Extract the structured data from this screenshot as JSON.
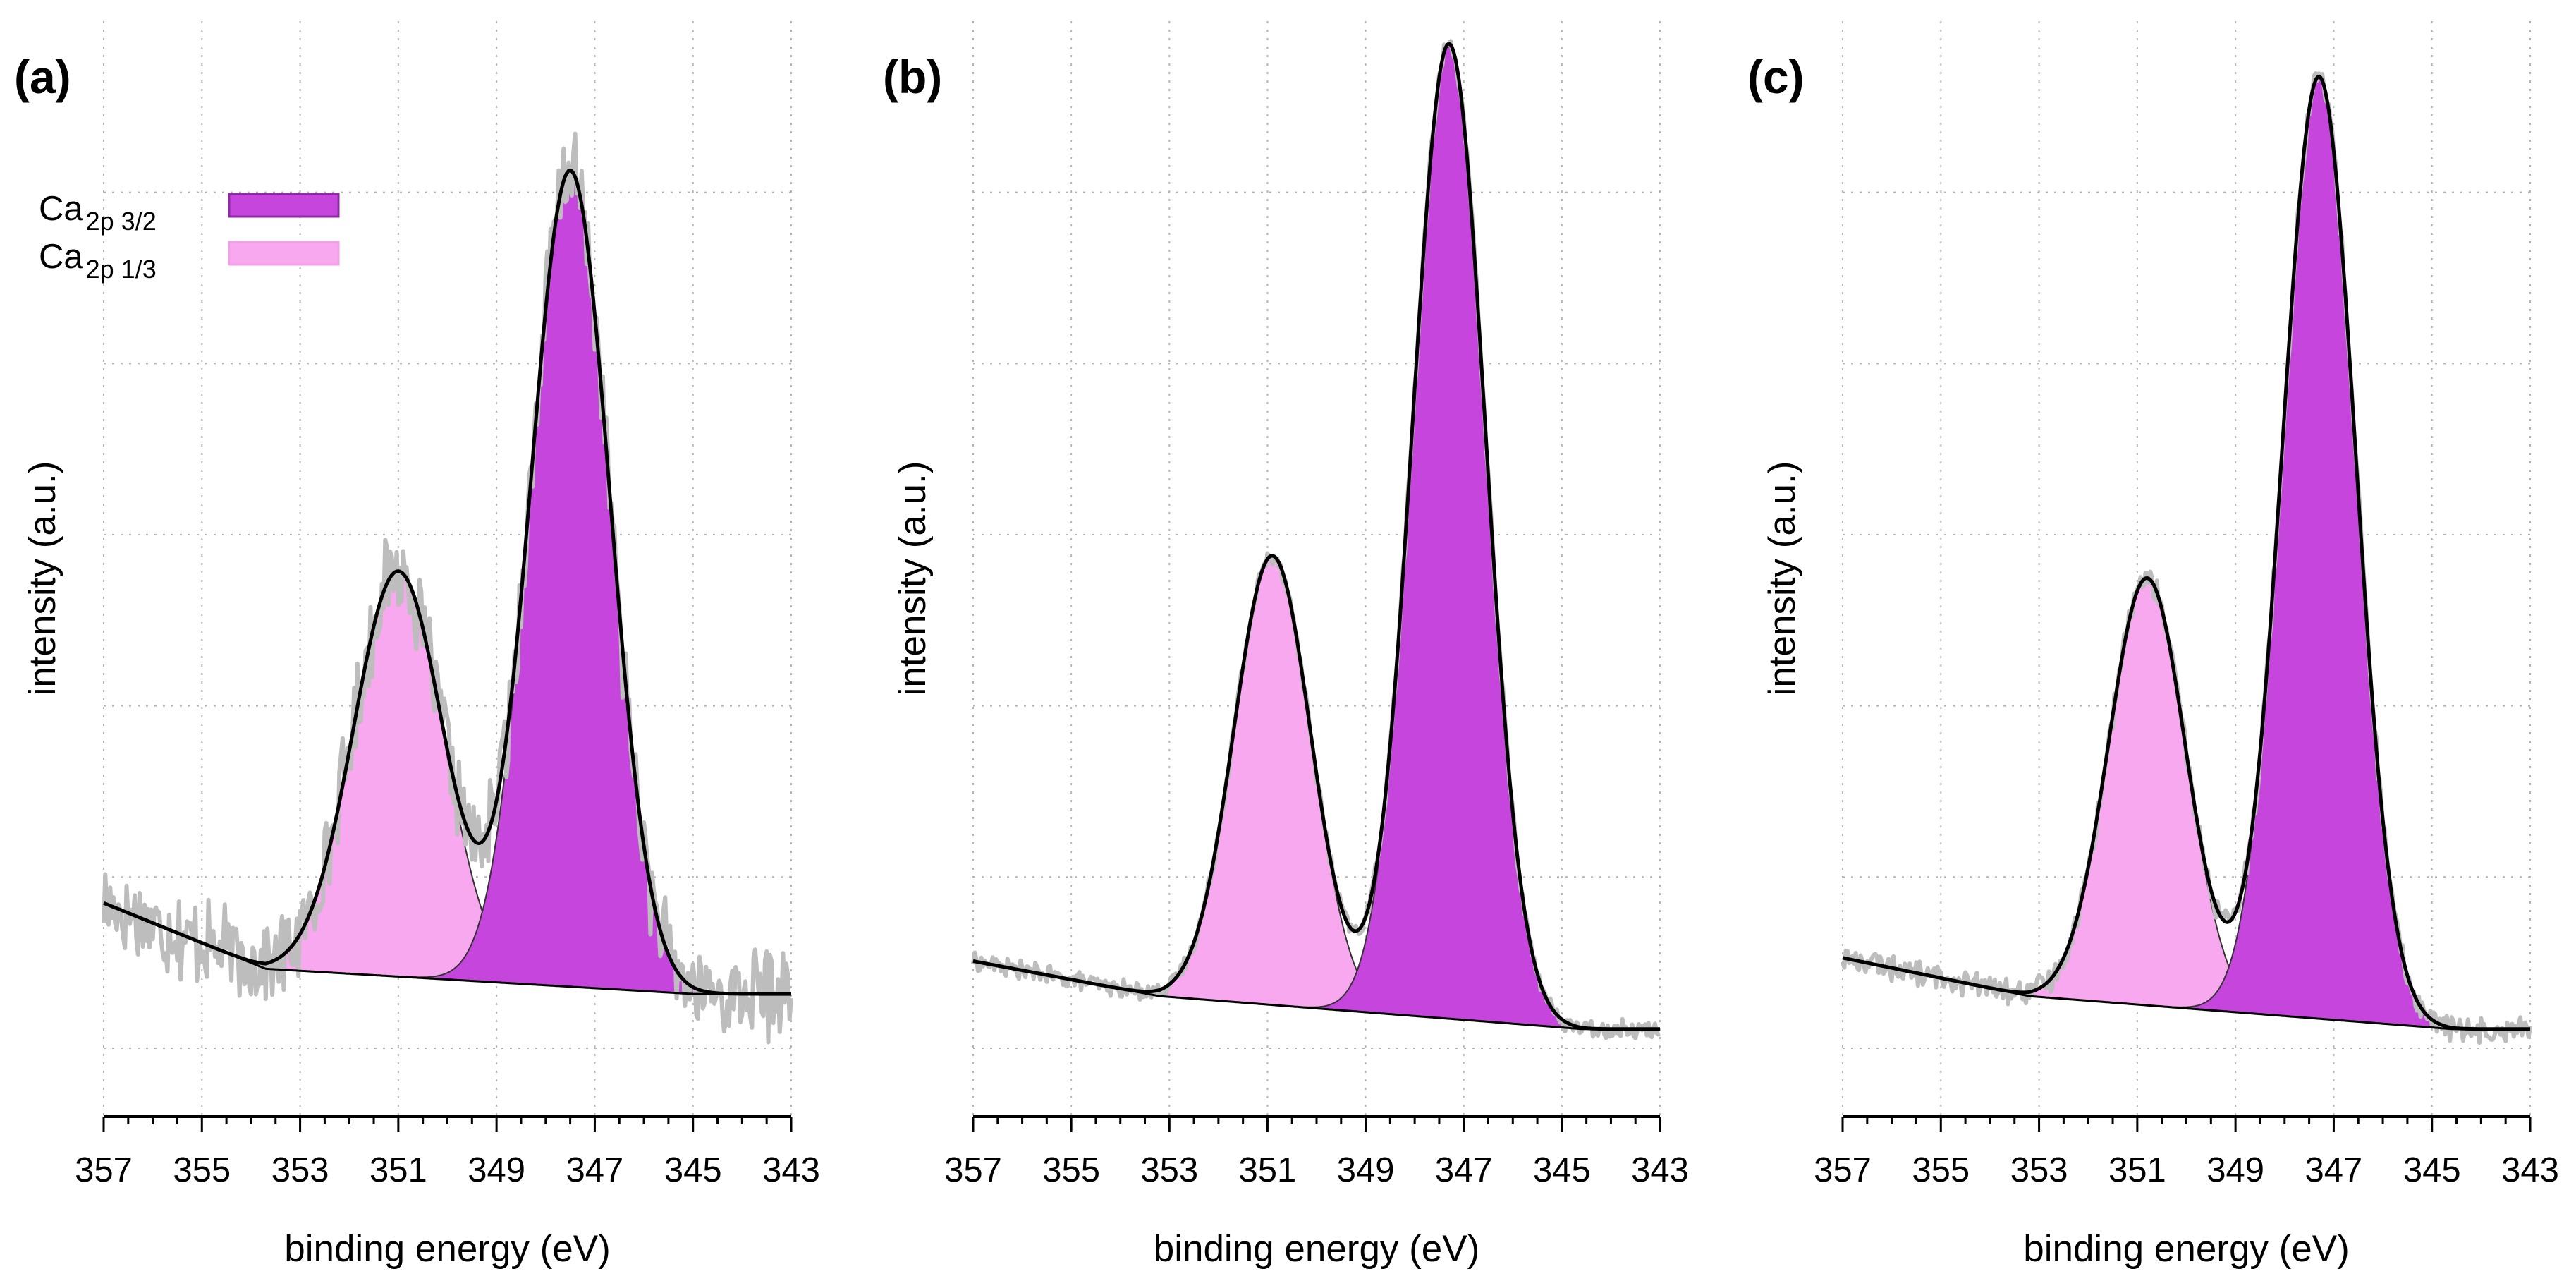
{
  "colors": {
    "ca_2p32": "#c646dd",
    "ca_2p13": "#f8a8ee",
    "raw": "#bdbdbd",
    "fit": "#000000"
  },
  "legend": {
    "items": [
      {
        "base": "Ca",
        "sub": "2p 3/2",
        "color": "#c646dd"
      },
      {
        "base": "Ca",
        "sub": "2p 1/3",
        "color": "#f8a8ee"
      }
    ]
  },
  "chart_data": [
    {
      "type": "line",
      "panel_label": "(a)",
      "xlabel": "binding energy (eV)",
      "ylabel": "intensity (a.u.)",
      "xlim": [
        357,
        343
      ],
      "ylim": [
        0,
        100
      ],
      "xticks": [
        "357",
        "355",
        "353",
        "351",
        "349",
        "347",
        "345",
        "343"
      ],
      "baseline": {
        "x": [
          357,
          353.7,
          345,
          343
        ],
        "y": [
          19.5,
          13.5,
          11.2,
          11.2
        ]
      },
      "peaks": [
        {
          "name": "Ca 2p 3/2",
          "center": 347.5,
          "height": 74.5,
          "fwhm": 1.9
        },
        {
          "name": "Ca 2p 1/3",
          "center": 351.0,
          "height": 37.0,
          "fwhm": 2.15
        }
      ],
      "noise": 3.5
    },
    {
      "type": "line",
      "panel_label": "(b)",
      "xlabel": "binding energy (eV)",
      "ylabel": "intensity (a.u.)",
      "xlim": [
        357,
        343
      ],
      "ylim": [
        0,
        100
      ],
      "xticks": [
        "357",
        "355",
        "353",
        "351",
        "349",
        "347",
        "345",
        "343"
      ],
      "baseline": {
        "x": [
          357,
          353.2,
          344.6,
          343
        ],
        "y": [
          14.2,
          11.0,
          8.0,
          8.0
        ]
      },
      "peaks": [
        {
          "name": "Ca 2p 3/2",
          "center": 347.3,
          "height": 89.0,
          "fwhm": 1.75
        },
        {
          "name": "Ca 2p 1/3",
          "center": 350.9,
          "height": 41.0,
          "fwhm": 1.85
        }
      ],
      "noise": 0.7
    },
    {
      "type": "line",
      "panel_label": "(c)",
      "xlabel": "binding energy (eV)",
      "ylabel": "intensity (a.u.)",
      "xlim": [
        357,
        343
      ],
      "ylim": [
        0,
        100
      ],
      "xticks": [
        "357",
        "355",
        "353",
        "351",
        "349",
        "347",
        "345",
        "343"
      ],
      "baseline": {
        "x": [
          357,
          353.2,
          344.6,
          343
        ],
        "y": [
          14.5,
          11.0,
          8.0,
          8.0
        ]
      },
      "peaks": [
        {
          "name": "Ca 2p 3/2",
          "center": 347.3,
          "height": 86.0,
          "fwhm": 1.75
        },
        {
          "name": "Ca 2p 1/3",
          "center": 350.8,
          "height": 39.0,
          "fwhm": 1.85
        }
      ],
      "noise": 1.0
    }
  ]
}
